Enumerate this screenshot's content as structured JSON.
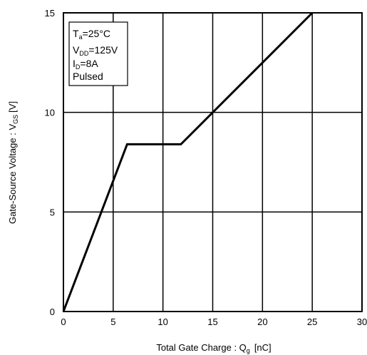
{
  "chart_data": {
    "type": "line",
    "xlabel": {
      "main": "Total Gate Charge : Q",
      "sub": "g",
      "unit": "[nC]"
    },
    "ylabel": {
      "main": "Gate-Source Voltage : V",
      "sub": "GS",
      "unit": "[V]"
    },
    "xlim": [
      0,
      30
    ],
    "ylim": [
      0,
      15
    ],
    "xticks": [
      "0",
      "5",
      "10",
      "15",
      "20",
      "25",
      "30"
    ],
    "yticks": [
      "0",
      "5",
      "10",
      "15"
    ],
    "grid": true,
    "conditions": [
      {
        "main": "T",
        "sub": "a",
        "rest": "=25°C"
      },
      {
        "main": "V",
        "sub": "DD",
        "rest": "=125V"
      },
      {
        "main": "I",
        "sub": "D",
        "rest": "=8A"
      },
      {
        "main": "Pulsed",
        "sub": "",
        "rest": ""
      }
    ],
    "series": [
      {
        "x": [
          0,
          6.4,
          11.8,
          25
        ],
        "y": [
          0,
          8.4,
          8.4,
          15
        ]
      }
    ]
  }
}
